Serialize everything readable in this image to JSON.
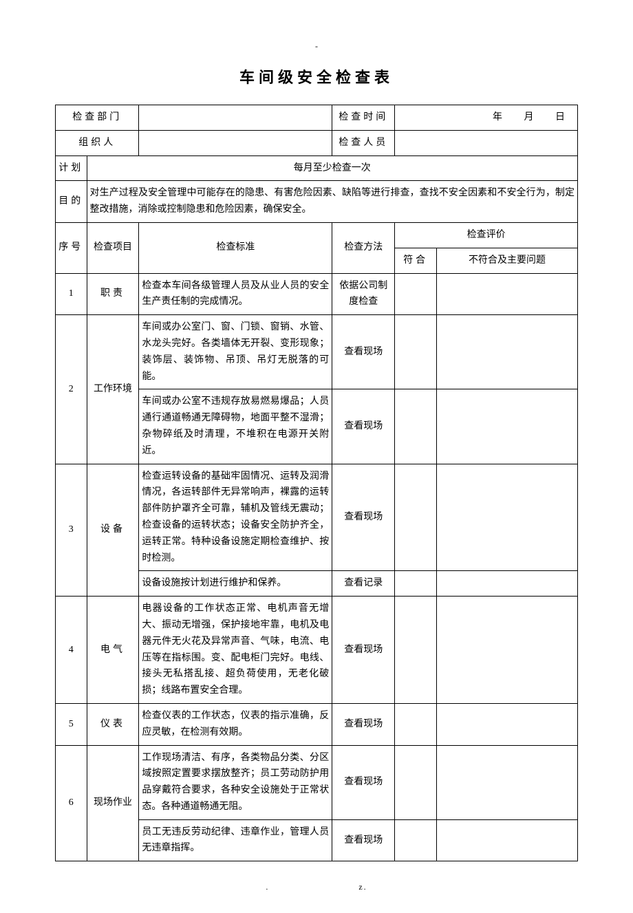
{
  "doc": {
    "dash": "-",
    "title": "车间级安全检查表",
    "footer_left": ".",
    "footer_right": "z."
  },
  "header": {
    "dept_label": "检查部门",
    "time_label": "检查时间",
    "year": "年",
    "month": "月",
    "day": "日",
    "org_label": "组织人",
    "inspector_label": "检查人员",
    "plan_label": "计划",
    "plan_value": "每月至少检查一次",
    "purpose_label": "目的",
    "purpose_value": "对生产过程及安全管理中可能存在的隐患、有害危险因素、缺陷等进行排查，查找不安全因素和不安全行为，制定整改措施，消除或控制隐患和危险因素，确保安全。"
  },
  "th": {
    "seq": "序号",
    "item": "检查项目",
    "standard": "检查标准",
    "method": "检查方法",
    "eval": "检查评价",
    "ok": "符合",
    "ng": "不符合及主要问题"
  },
  "rows": {
    "r1_seq": "1",
    "r1_item": "职责",
    "r1_std": "检查本车间各级管理人员及从业人员的安全生产责任制的完成情况。",
    "r1_meth": "依据公司制度检查",
    "r2_seq": "2",
    "r2_item": "工作环境",
    "r2_std_a": "车间或办公室门、窗、门锁、窗销、水管、水龙头完好。各类墙体无开裂、变形现象；装饰层、装饰物、吊顶、吊灯无脱落的可能。",
    "r2_meth_a": "查看现场",
    "r2_std_b": "车间或办公室不违规存放易燃易爆品；人员通行通道畅通无障碍物，地面平整不湿滑；杂物碎纸及时清理，不堆积在电源开关附近。",
    "r2_meth_b": "查看现场",
    "r3_seq": "3",
    "r3_item": "设备",
    "r3_std_a": "检查运转设备的基础牢固情况、运转及润滑情况，各运转部件无异常响声，裸露的运转部件防护罩齐全可靠，辅机及管线无震动；检查设备的运转状态；设备安全防护齐全，运转正常。特种设备设施定期检查维护、按时检测。",
    "r3_meth_a": "查看现场",
    "r3_std_b": "设备设施按计划进行维护和保养。",
    "r3_meth_b": "查看记录",
    "r4_seq": "4",
    "r4_item": "电气",
    "r4_std": "电器设备的工作状态正常、电机声音无增大、振动无增强，保护接地牢靠，电机及电器元件无火花及异常声音、气味，电流、电压等在指标围。变、配电柜门完好。电线、接头无私搭乱接、超负荷使用，无老化破损；线路布置安全合理。",
    "r4_meth": "查看现场",
    "r5_seq": "5",
    "r5_item": "仪表",
    "r5_std": "检查仪表的工作状态，仪表的指示准确，反应灵敏，在检测有效期。",
    "r5_meth": "查看现场",
    "r6_seq": "6",
    "r6_item": "现场作业",
    "r6_std_a": "工作现场清洁、有序，各类物品分类、分区域按照定置要求摆放整齐；员工劳动防护用品穿戴符合要求，各种安全设施处于正常状态。各种通道畅通无阻。",
    "r6_meth_a": "查看现场",
    "r6_std_b": "员工无违反劳动纪律、违章作业，管理人员无违章指挥。",
    "r6_meth_b": "查看现场"
  }
}
